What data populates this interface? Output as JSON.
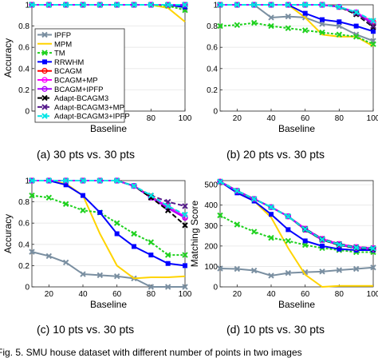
{
  "figure_caption": "Fig. 5. SMU house dataset with different number of points in two images",
  "captions": [
    "(a) 30 pts vs. 30 pts",
    "(b) 20 pts vs. 30 pts",
    "(c) 10 pts vs. 30 pts",
    "(d) 10 pts vs. 30 pts"
  ],
  "legend": [
    {
      "name": "IPFP",
      "color": "#7a8fa1",
      "marker": "x",
      "dash": ""
    },
    {
      "name": "MPM",
      "color": "#ffd400",
      "marker": "none",
      "dash": ""
    },
    {
      "name": "TM",
      "color": "#1fd11f",
      "marker": "x",
      "dash": "3,2"
    },
    {
      "name": "RRWHM",
      "color": "#0000ff",
      "marker": "square",
      "dash": ""
    },
    {
      "name": "BCAGM",
      "color": "#ff0000",
      "marker": "circle",
      "dash": ""
    },
    {
      "name": "BCAGM+MP",
      "color": "#ff00ff",
      "marker": "circle",
      "dash": ""
    },
    {
      "name": "BCAGM+IPFP",
      "color": "#b000ff",
      "marker": "circle",
      "dash": ""
    },
    {
      "name": "Adapt-BCAGM3",
      "color": "#000000",
      "marker": "x",
      "dash": "6,3"
    },
    {
      "name": "Adapt-BCAGM3+MP",
      "color": "#551a8b",
      "marker": "x",
      "dash": "6,3"
    },
    {
      "name": "Adapt-BCAGM3+IPFP",
      "color": "#00e5e5",
      "marker": "x",
      "dash": "6,3"
    }
  ],
  "chart_data": [
    {
      "type": "line",
      "xlabel": "Baseline",
      "ylabel": "Accuracy",
      "xlim": [
        10,
        100
      ],
      "ylim": [
        0,
        1
      ],
      "xticks": [
        20,
        40,
        60,
        80,
        100
      ],
      "xtick_labels": [
        "20",
        "40",
        "60",
        "80",
        "100"
      ],
      "yticks": [
        0,
        0.2,
        0.4,
        0.6,
        0.8,
        1
      ],
      "ytick_labels": [
        "0",
        "0.2",
        "0.4",
        "0.6",
        "0.8",
        "1"
      ],
      "x": [
        10,
        20,
        30,
        40,
        50,
        60,
        70,
        80,
        90,
        100
      ],
      "series": [
        {
          "name": "IPFP",
          "values": [
            1,
            1,
            1,
            1,
            1,
            1,
            1,
            1,
            1,
            0.97
          ]
        },
        {
          "name": "MPM",
          "values": [
            1,
            1,
            1,
            1,
            1,
            1,
            1,
            1,
            0.97,
            0.84
          ]
        },
        {
          "name": "TM",
          "values": [
            1,
            1,
            1,
            1,
            1,
            1,
            1,
            1,
            0.99,
            0.95
          ]
        },
        {
          "name": "RRWHM",
          "values": [
            1,
            1,
            1,
            1,
            1,
            1,
            1,
            1,
            1,
            0.98
          ]
        },
        {
          "name": "BCAGM",
          "values": [
            1,
            1,
            1,
            1,
            1,
            1,
            1,
            1,
            1,
            1
          ]
        },
        {
          "name": "BCAGM+MP",
          "values": [
            1,
            1,
            1,
            1,
            1,
            1,
            1,
            1,
            1,
            1
          ]
        },
        {
          "name": "BCAGM+IPFP",
          "values": [
            1,
            1,
            1,
            1,
            1,
            1,
            1,
            1,
            1,
            1
          ]
        },
        {
          "name": "Adapt-BCAGM3",
          "values": [
            1,
            1,
            1,
            1,
            1,
            1,
            1,
            1,
            1,
            1
          ]
        },
        {
          "name": "Adapt-BCAGM3+MP",
          "values": [
            1,
            1,
            1,
            1,
            1,
            1,
            1,
            1,
            1,
            1
          ]
        },
        {
          "name": "Adapt-BCAGM3+IPFP",
          "values": [
            1,
            1,
            1,
            1,
            1,
            1,
            1,
            1,
            1,
            1
          ]
        }
      ]
    },
    {
      "type": "line",
      "xlabel": "Baseline",
      "ylabel": "",
      "xlim": [
        10,
        100
      ],
      "ylim": [
        0,
        1
      ],
      "xticks": [
        20,
        40,
        60,
        80,
        100
      ],
      "xtick_labels": [
        "20",
        "40",
        "60",
        "80",
        "100"
      ],
      "yticks": [
        0,
        0.2,
        0.4,
        0.6,
        0.8,
        1
      ],
      "ytick_labels": [
        "0",
        "0.2",
        "0.4",
        "0.6",
        "0.8",
        "1"
      ],
      "x": [
        10,
        20,
        30,
        40,
        50,
        60,
        70,
        80,
        90,
        100
      ],
      "series": [
        {
          "name": "IPFP",
          "values": [
            1,
            1,
            1,
            0.88,
            0.89,
            0.88,
            0.82,
            0.8,
            0.72,
            0.66
          ]
        },
        {
          "name": "MPM",
          "values": [
            1,
            1,
            1,
            1,
            1,
            0.88,
            0.72,
            0.7,
            0.7,
            0.61
          ]
        },
        {
          "name": "TM",
          "values": [
            0.8,
            0.81,
            0.83,
            0.8,
            0.78,
            0.76,
            0.74,
            0.72,
            0.7,
            0.63
          ]
        },
        {
          "name": "RRWHM",
          "values": [
            1,
            1,
            1,
            1,
            1,
            0.92,
            0.86,
            0.84,
            0.8,
            0.75
          ]
        },
        {
          "name": "BCAGM",
          "values": [
            1,
            1,
            1,
            1,
            1,
            1,
            1,
            0.98,
            0.92,
            0.84
          ]
        },
        {
          "name": "BCAGM+MP",
          "values": [
            1,
            1,
            1,
            1,
            1,
            1,
            1,
            0.98,
            0.93,
            0.83
          ]
        },
        {
          "name": "BCAGM+IPFP",
          "values": [
            1,
            1,
            1,
            1,
            1,
            1,
            1,
            0.98,
            0.92,
            0.82
          ]
        },
        {
          "name": "Adapt-BCAGM3",
          "values": [
            1,
            1,
            1,
            1,
            1,
            1,
            1,
            0.98,
            0.91,
            0.79
          ]
        },
        {
          "name": "Adapt-BCAGM3+MP",
          "values": [
            1,
            1,
            1,
            1,
            1,
            1,
            1,
            0.98,
            0.92,
            0.8
          ]
        },
        {
          "name": "Adapt-BCAGM3+IPFP",
          "values": [
            1,
            1,
            1,
            1,
            1,
            1,
            1,
            0.98,
            0.93,
            0.85
          ]
        }
      ]
    },
    {
      "type": "line",
      "xlabel": "Baseline",
      "ylabel": "Accuracy",
      "xlim": [
        10,
        100
      ],
      "ylim": [
        0,
        1
      ],
      "xticks": [
        20,
        40,
        60,
        80,
        100
      ],
      "xtick_labels": [
        "20",
        "40",
        "60",
        "80",
        "100"
      ],
      "yticks": [
        0,
        0.2,
        0.4,
        0.6,
        0.8,
        1
      ],
      "ytick_labels": [
        "0",
        "0.2",
        "0.4",
        "0.6",
        "0.8",
        "1"
      ],
      "x": [
        10,
        20,
        30,
        40,
        50,
        60,
        70,
        80,
        90,
        100
      ],
      "series": [
        {
          "name": "IPFP",
          "values": [
            0.33,
            0.29,
            0.23,
            0.12,
            0.11,
            0.1,
            0.08,
            0.0,
            0.0,
            0.0
          ]
        },
        {
          "name": "MPM",
          "values": [
            1,
            1,
            0.97,
            0.86,
            0.5,
            0.2,
            0.08,
            0.09,
            0.09,
            0.1
          ]
        },
        {
          "name": "TM",
          "values": [
            0.86,
            0.84,
            0.78,
            0.72,
            0.7,
            0.6,
            0.5,
            0.42,
            0.3,
            0.3
          ]
        },
        {
          "name": "RRWHM",
          "values": [
            1,
            1,
            0.96,
            0.86,
            0.7,
            0.5,
            0.38,
            0.3,
            0.22,
            0.2
          ]
        },
        {
          "name": "BCAGM",
          "values": [
            1,
            1,
            1,
            1,
            1,
            1,
            0.95,
            0.85,
            0.75,
            0.65
          ]
        },
        {
          "name": "BCAGM+MP",
          "values": [
            1,
            1,
            1,
            1,
            1,
            1,
            0.95,
            0.84,
            0.76,
            0.66
          ]
        },
        {
          "name": "BCAGM+IPFP",
          "values": [
            1,
            1,
            1,
            1,
            1,
            1,
            0.95,
            0.84,
            0.74,
            0.65
          ]
        },
        {
          "name": "Adapt-BCAGM3",
          "values": [
            1,
            1,
            1,
            1,
            1,
            1,
            0.95,
            0.84,
            0.72,
            0.58
          ]
        },
        {
          "name": "Adapt-BCAGM3+MP",
          "values": [
            1,
            1,
            1,
            1,
            1,
            1,
            0.95,
            0.86,
            0.8,
            0.76
          ]
        },
        {
          "name": "Adapt-BCAGM3+IPFP",
          "values": [
            1,
            1,
            1,
            1,
            1,
            1,
            0.95,
            0.86,
            0.76,
            0.68
          ]
        }
      ]
    },
    {
      "type": "line",
      "xlabel": "Baseline",
      "ylabel": "Matching Score",
      "xlim": [
        10,
        100
      ],
      "ylim": [
        0,
        520
      ],
      "xticks": [
        20,
        40,
        60,
        80,
        100
      ],
      "xtick_labels": [
        "20",
        "40",
        "60",
        "80",
        "100"
      ],
      "yticks": [
        0,
        100,
        200,
        300,
        400,
        500
      ],
      "ytick_labels": [
        "0",
        "100",
        "200",
        "300",
        "400",
        "500"
      ],
      "x": [
        10,
        20,
        30,
        40,
        50,
        60,
        70,
        80,
        90,
        100
      ],
      "series": [
        {
          "name": "IPFP",
          "values": [
            90,
            88,
            80,
            55,
            68,
            72,
            75,
            82,
            88,
            95
          ]
        },
        {
          "name": "MPM",
          "values": [
            515,
            470,
            420,
            340,
            190,
            60,
            0,
            5,
            5,
            5
          ]
        },
        {
          "name": "TM",
          "values": [
            350,
            305,
            270,
            240,
            225,
            205,
            190,
            180,
            170,
            170
          ]
        },
        {
          "name": "RRWHM",
          "values": [
            515,
            460,
            420,
            355,
            280,
            225,
            200,
            185,
            180,
            180
          ]
        },
        {
          "name": "BCAGM",
          "values": [
            515,
            470,
            430,
            390,
            345,
            280,
            230,
            205,
            190,
            185
          ]
        },
        {
          "name": "BCAGM+MP",
          "values": [
            515,
            470,
            430,
            390,
            345,
            285,
            235,
            210,
            195,
            190
          ]
        },
        {
          "name": "BCAGM+IPFP",
          "values": [
            515,
            470,
            430,
            390,
            345,
            280,
            230,
            205,
            190,
            185
          ]
        },
        {
          "name": "Adapt-BCAGM3",
          "values": [
            515,
            470,
            430,
            390,
            345,
            280,
            230,
            205,
            190,
            185
          ]
        },
        {
          "name": "Adapt-BCAGM3+MP",
          "values": [
            515,
            470,
            430,
            390,
            345,
            285,
            235,
            210,
            195,
            190
          ]
        },
        {
          "name": "Adapt-BCAGM3+IPFP",
          "values": [
            515,
            470,
            430,
            390,
            345,
            282,
            232,
            207,
            192,
            188
          ]
        }
      ]
    }
  ]
}
